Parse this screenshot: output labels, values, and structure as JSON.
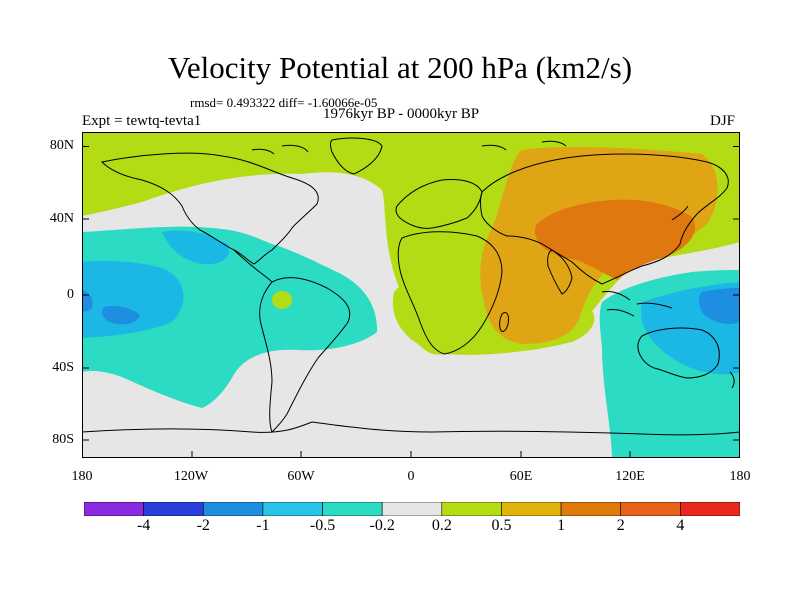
{
  "title": "Velocity Potential at 200 hPa (km2/s)",
  "stats_line": "rmsd= 0.493322 diff= -1.60066e-05",
  "experiment": "Expt = tewtq-tevta1",
  "period": "1976kyr BP - 0000kyr BP",
  "season": "DJF",
  "map": {
    "projection": "equirectangular",
    "lon_range": [
      -180,
      180
    ],
    "lat_range": [
      -90,
      90
    ],
    "lat_ticks": [
      "80N",
      "40N",
      "0",
      "40S",
      "80S"
    ],
    "lon_ticks": [
      "180",
      "120W",
      "60W",
      "0",
      "60E",
      "120E",
      "180"
    ],
    "background_level": "-0.2 to 0.2"
  },
  "colorbar": {
    "bounds": [
      "-4",
      "-2",
      "-1",
      "-0.5",
      "-0.2",
      "0.2",
      "0.5",
      "1",
      "2",
      "4"
    ],
    "colors": [
      "#8a2be2",
      "#2a3fdc",
      "#1e8ee0",
      "#29c4e8",
      "#2bdbc4",
      "#e6e6e6",
      "#b4dc14",
      "#e0b40a",
      "#e07a0a",
      "#e8621a",
      "#e8281e"
    ]
  },
  "fill_colors": {
    "positive_low": "#b4dc14",
    "positive_mid": "#e0a514",
    "positive_high": "#e07810",
    "negative_low": "#2bdbc4",
    "negative_mid": "#1bb8e6",
    "negative_high": "#1e8ee0",
    "neutral": "#e6e6e6",
    "coast": "#000000"
  }
}
